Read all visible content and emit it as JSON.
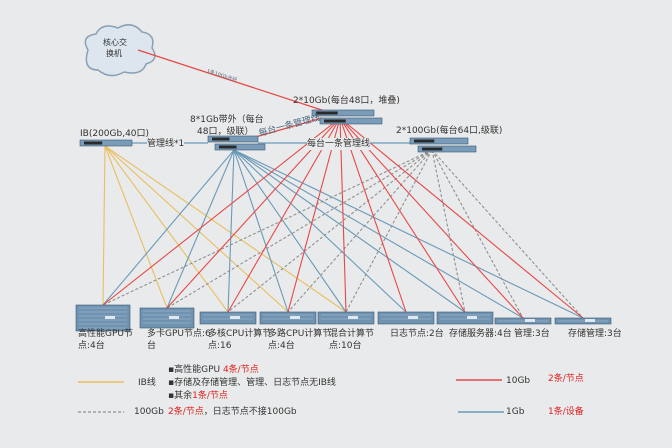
{
  "core": {
    "label1": "核心交",
    "label2": "换机",
    "link_label": "1条10Gb光纤"
  },
  "switches": {
    "ten_gb": "2*10Gb(每台48口，堆叠)",
    "one_gb_1": "8*1Gb带外（每台",
    "one_gb_2": "48口，级联）",
    "ib": "IB(200Gb,40口)",
    "hundred_gb": "2*100Gb(每台64口,级联)"
  },
  "mgmt": {
    "ib_to_1gb": "管理线*1",
    "one_to_100": "每台一条管理线",
    "one_to_10": "每台一条管理线"
  },
  "nodes": [
    {
      "label": "高性能GPU节点:4台"
    },
    {
      "label": "多卡GPU节点:6台"
    },
    {
      "label": "多核CPU计算节点:16"
    },
    {
      "label": "多路CPU计算节点:4台"
    },
    {
      "label": "混合计算节点:10台"
    },
    {
      "label": "日志节点:2台"
    },
    {
      "label": "存储服务器:4台"
    },
    {
      "label": "管理:3台"
    },
    {
      "label": "存储管理:3台"
    }
  ],
  "links": {
    "ib": [
      0,
      1,
      2,
      3,
      4
    ],
    "gb1": [
      0,
      1,
      2,
      3,
      4,
      5,
      6,
      7,
      8
    ],
    "gb10": [
      0,
      1,
      2,
      3,
      4,
      5,
      6,
      7,
      8
    ],
    "gb100": [
      0,
      1,
      2,
      3,
      4,
      6,
      7,
      8
    ]
  },
  "colors": {
    "ib": "#e8c060",
    "gb1": "#6a9ab8",
    "gb10": "#e84848",
    "gb100": "#909090"
  },
  "legend": {
    "ib": "IB线",
    "note1_a": "▪高性能GPU ",
    "note1_b": "4条/节点",
    "note2": "▪存储及存储管理、管理、日志节点无IB线",
    "note3_a": "▪其余",
    "note3_b": "1条/节点",
    "g100": "100Gb",
    "g100_a": "2条/节点",
    "g100_b": "，日志节点不接100Gb",
    "g10": "10Gb",
    "g10_note": "2条/节点",
    "g1": "1Gb",
    "g1_note": "1条/设备"
  }
}
